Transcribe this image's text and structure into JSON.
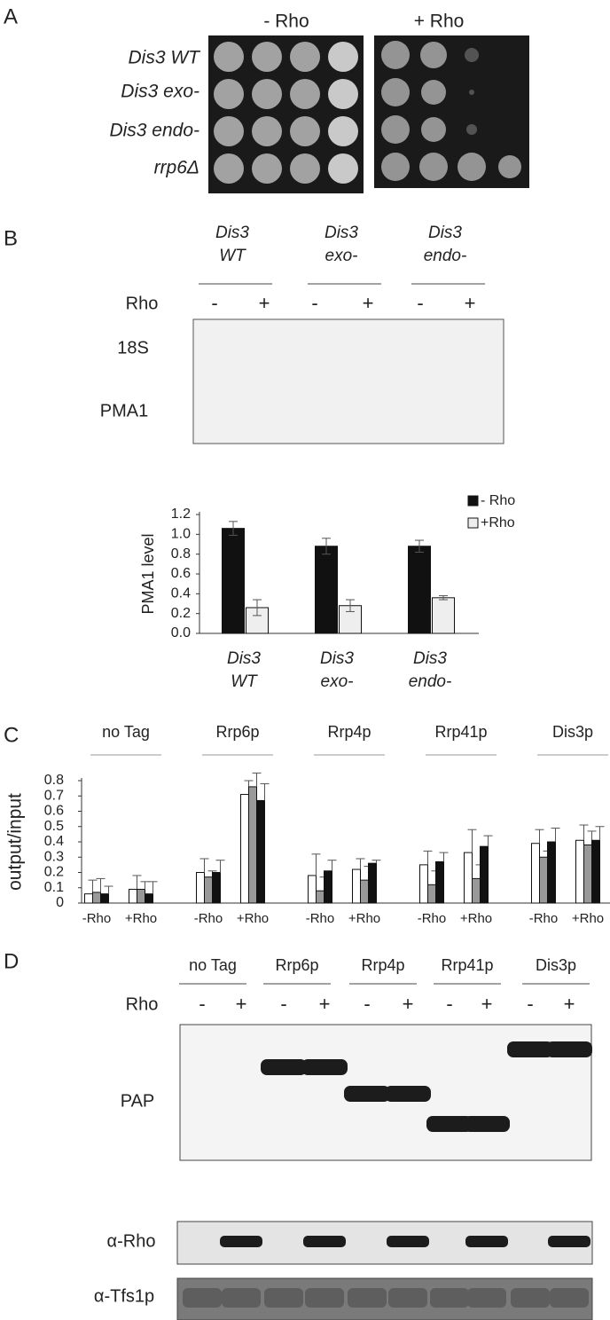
{
  "panel_labels": [
    "A",
    "B",
    "C",
    "D"
  ],
  "panel_a": {
    "conditions": [
      "- Rho",
      "+ Rho"
    ],
    "strains": [
      "Dis3 WT",
      "Dis3 exo-",
      "Dis3 endo-",
      "rrp6Δ"
    ]
  },
  "panel_b": {
    "strains": [
      "Dis3 WT",
      "Dis3 exo-",
      "Dis3 endo-"
    ],
    "rho_label": "Rho",
    "lanes": [
      "-",
      "+",
      "-",
      "+",
      "-",
      "+"
    ],
    "bands": [
      "18S",
      "PMA1"
    ]
  },
  "chart_data": [
    {
      "type": "bar",
      "categories": [
        "Dis3 WT",
        "Dis3 exo-",
        "Dis3 endo-"
      ],
      "y_label": "PMA1 level",
      "series": [
        {
          "name": "- Rho",
          "color": "#111111",
          "values": [
            1.06,
            0.88,
            0.88
          ],
          "errors": [
            0.07,
            0.08,
            0.06
          ]
        },
        {
          "name": "+Rho",
          "color": "#eeeeee",
          "values": [
            0.26,
            0.28,
            0.36
          ],
          "errors": [
            0.08,
            0.06,
            0.02
          ]
        }
      ],
      "ylim": [
        0,
        1.2
      ],
      "yticks": [
        {
          "value": 0,
          "label": "0.0"
        },
        0.2,
        0.4,
        0.6,
        0.8,
        {
          "value": 1,
          "label": "1.0"
        },
        1.2
      ],
      "legend": "top-right"
    },
    {
      "type": "bar",
      "groups": [
        "no Tag",
        "Rrp6p",
        "Rrp4p",
        "Rrp41p",
        "Dis3p"
      ],
      "categories": [
        "-Rho",
        "+Rho",
        "-Rho",
        "+Rho",
        "-Rho",
        "+Rho",
        "-Rho",
        "+Rho",
        "-Rho",
        "+Rho"
      ],
      "y_label": "output/input",
      "series": [
        {
          "color": "#ffffff",
          "values": [
            0.06,
            0.09,
            0.2,
            0.71,
            0.18,
            0.22,
            0.25,
            0.33,
            0.39,
            0.41
          ],
          "errors": [
            0.09,
            0.09,
            0.09,
            0.09,
            0.14,
            0.07,
            0.09,
            0.15,
            0.09,
            0.1
          ]
        },
        {
          "color": "#999999",
          "values": [
            0.07,
            0.09,
            0.17,
            0.76,
            0.08,
            0.15,
            0.12,
            0.16,
            0.3,
            0.38
          ],
          "errors": [
            0.09,
            0.05,
            0.04,
            0.09,
            0.09,
            0.09,
            0.09,
            0.09,
            0.04,
            0.09
          ]
        },
        {
          "color": "#111111",
          "values": [
            0.06,
            0.06,
            0.2,
            0.67,
            0.21,
            0.26,
            0.27,
            0.37,
            0.4,
            0.41
          ],
          "errors": [
            0.05,
            0.08,
            0.08,
            0.11,
            0.07,
            0.02,
            0.06,
            0.07,
            0.09,
            0.09
          ]
        }
      ],
      "ylim": [
        0,
        0.8
      ],
      "yticks": [
        0,
        0.1,
        0.2,
        0.3,
        0.4,
        0.5,
        0.6,
        0.7,
        0.8
      ]
    }
  ],
  "panel_d": {
    "strains": [
      "no Tag",
      "Rrp6p",
      "Rrp4p",
      "Rrp41p",
      "Dis3p"
    ],
    "rho_label": "Rho",
    "lanes": [
      "-",
      "+",
      "-",
      "+",
      "-",
      "+",
      "-",
      "+",
      "-",
      "+"
    ],
    "blots": [
      "PAP",
      "α-Rho",
      "α-Tfs1p"
    ]
  }
}
